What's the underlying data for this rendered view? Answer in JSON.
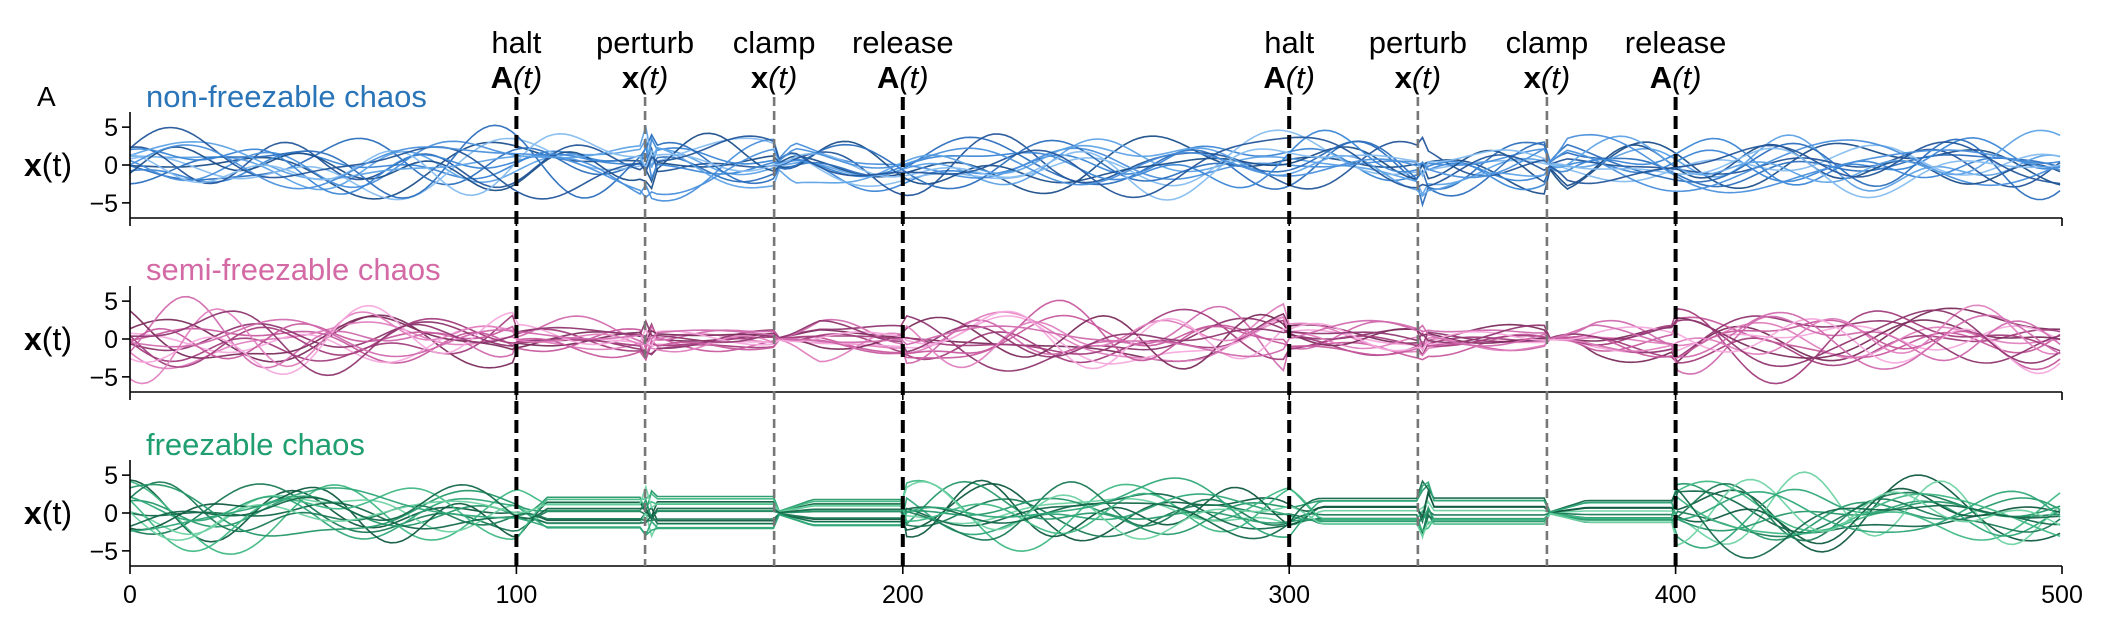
{
  "panel_letter": "A",
  "chart_data": {
    "type": "line",
    "x_range": [
      0,
      500
    ],
    "xticks": [
      "0",
      "100",
      "200",
      "300",
      "400",
      "500"
    ],
    "xtick_values": [
      0,
      100,
      200,
      300,
      400,
      500
    ],
    "ylim": [
      -7,
      7
    ],
    "grid": false,
    "events": [
      {
        "t": 100,
        "word": "halt",
        "sym_bold": "A",
        "sym_arg": "(t)",
        "style": "bold-dashed-black"
      },
      {
        "t": 133.3,
        "word": "perturb",
        "sym_bold": "x",
        "sym_arg": "(t)",
        "style": "thin-dashed-gray"
      },
      {
        "t": 166.7,
        "word": "clamp",
        "sym_bold": "x",
        "sym_arg": "(t)",
        "style": "thin-dashed-gray"
      },
      {
        "t": 200,
        "word": "release",
        "sym_bold": "A",
        "sym_arg": "(t)",
        "style": "bold-dashed-black"
      },
      {
        "t": 300,
        "word": "halt",
        "sym_bold": "A",
        "sym_arg": "(t)",
        "style": "bold-dashed-black"
      },
      {
        "t": 333.3,
        "word": "perturb",
        "sym_bold": "x",
        "sym_arg": "(t)",
        "style": "thin-dashed-gray"
      },
      {
        "t": 366.7,
        "word": "clamp",
        "sym_bold": "x",
        "sym_arg": "(t)",
        "style": "thin-dashed-gray"
      },
      {
        "t": 400,
        "word": "release",
        "sym_bold": "A",
        "sym_arg": "(t)",
        "style": "bold-dashed-black"
      }
    ],
    "panels": [
      {
        "title": "non-freezable chaos",
        "title_color": "#2a74b8",
        "ylabel_bold": "x",
        "ylabel_rest": "(t)",
        "yticks": [
          "5",
          "0",
          "−5"
        ],
        "ytick_values": [
          5,
          0,
          -5
        ],
        "behavior": "non-freezable",
        "n_traces": 14,
        "amplitude": 2.8,
        "palette": [
          "#1b4f8a",
          "#2c6fbd",
          "#3b86d6",
          "#5ea3e6",
          "#86bdf0",
          "#24569a",
          "#4a90dc"
        ]
      },
      {
        "title": "semi-freezable chaos",
        "title_color": "#d46aa5",
        "ylabel_bold": "x",
        "ylabel_rest": "(t)",
        "yticks": [
          "5",
          "0",
          "−5"
        ],
        "ytick_values": [
          5,
          0,
          -5
        ],
        "behavior": "semi-freezable",
        "n_traces": 14,
        "amplitude": 2.7,
        "palette": [
          "#7b2c5c",
          "#a23d7c",
          "#c75a9e",
          "#e07fbf",
          "#f5a9dd",
          "#8f3770",
          "#d16aae"
        ]
      },
      {
        "title": "freezable chaos",
        "title_color": "#1f9e70",
        "ylabel_bold": "x",
        "ylabel_rest": "(t)",
        "yticks": [
          "5",
          "0",
          "−5"
        ],
        "ytick_values": [
          5,
          0,
          -5
        ],
        "behavior": "freezable",
        "n_traces": 14,
        "amplitude": 3.0,
        "palette": [
          "#0f5a3f",
          "#1b7a56",
          "#26996a",
          "#3fb884",
          "#6fd3a3",
          "#14684a",
          "#2fa878"
        ]
      }
    ]
  }
}
